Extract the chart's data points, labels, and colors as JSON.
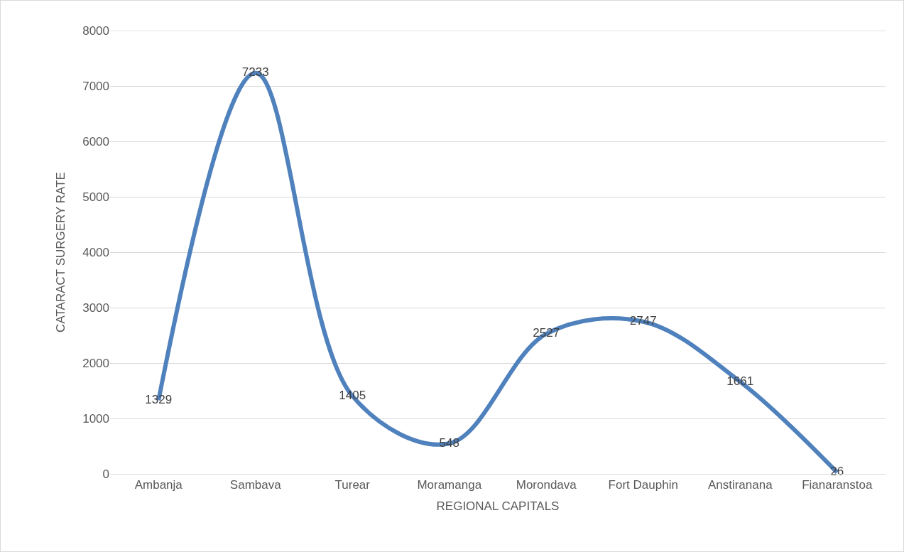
{
  "chart_data": {
    "type": "line",
    "xlabel": "REGIONAL CAPITALS",
    "ylabel": "CATARACT SURGERY RATE",
    "categories": [
      "Ambanja",
      "Sambava",
      "Turear",
      "Moramanga",
      "Morondava",
      "Fort Dauphin",
      "Anstiranana",
      "Fianaranstoa"
    ],
    "series": [
      {
        "color": "#4f81bd",
        "values": [
          1329,
          7233,
          1405,
          548,
          2527,
          2747,
          1661,
          26
        ]
      }
    ],
    "ylim": [
      0,
      8000
    ],
    "yticks": [
      0,
      1000,
      2000,
      3000,
      4000,
      5000,
      6000,
      7000,
      8000
    ],
    "grid": "y",
    "marker": "none",
    "line_style": "solid",
    "data_labels": true
  }
}
